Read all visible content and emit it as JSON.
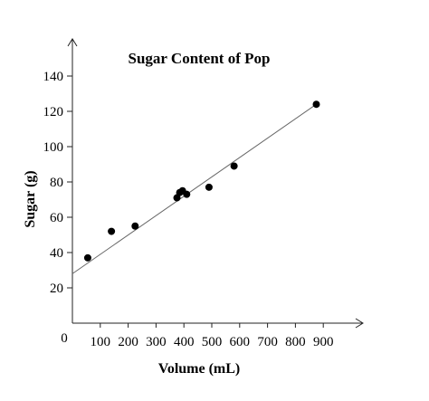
{
  "chart_data": {
    "type": "scatter",
    "title": "Sugar Content of Pop",
    "xlabel": "Volume (mL)",
    "ylabel": "Sugar (g)",
    "origin_label": "0",
    "xlim": [
      0,
      1050
    ],
    "ylim": [
      0,
      160
    ],
    "x_ticks": [
      100,
      200,
      300,
      400,
      500,
      600,
      700,
      800,
      900
    ],
    "y_ticks": [
      20,
      40,
      60,
      80,
      100,
      120,
      140
    ],
    "grid": false,
    "series": [
      {
        "x": [
          55,
          140,
          225,
          375,
          385,
          395,
          410,
          490,
          580,
          875
        ],
        "y": [
          37,
          52,
          55,
          71,
          74,
          75,
          73,
          77,
          89,
          124
        ]
      }
    ],
    "trendline": {
      "x": [
        0,
        875
      ],
      "y": [
        28,
        124
      ]
    }
  }
}
